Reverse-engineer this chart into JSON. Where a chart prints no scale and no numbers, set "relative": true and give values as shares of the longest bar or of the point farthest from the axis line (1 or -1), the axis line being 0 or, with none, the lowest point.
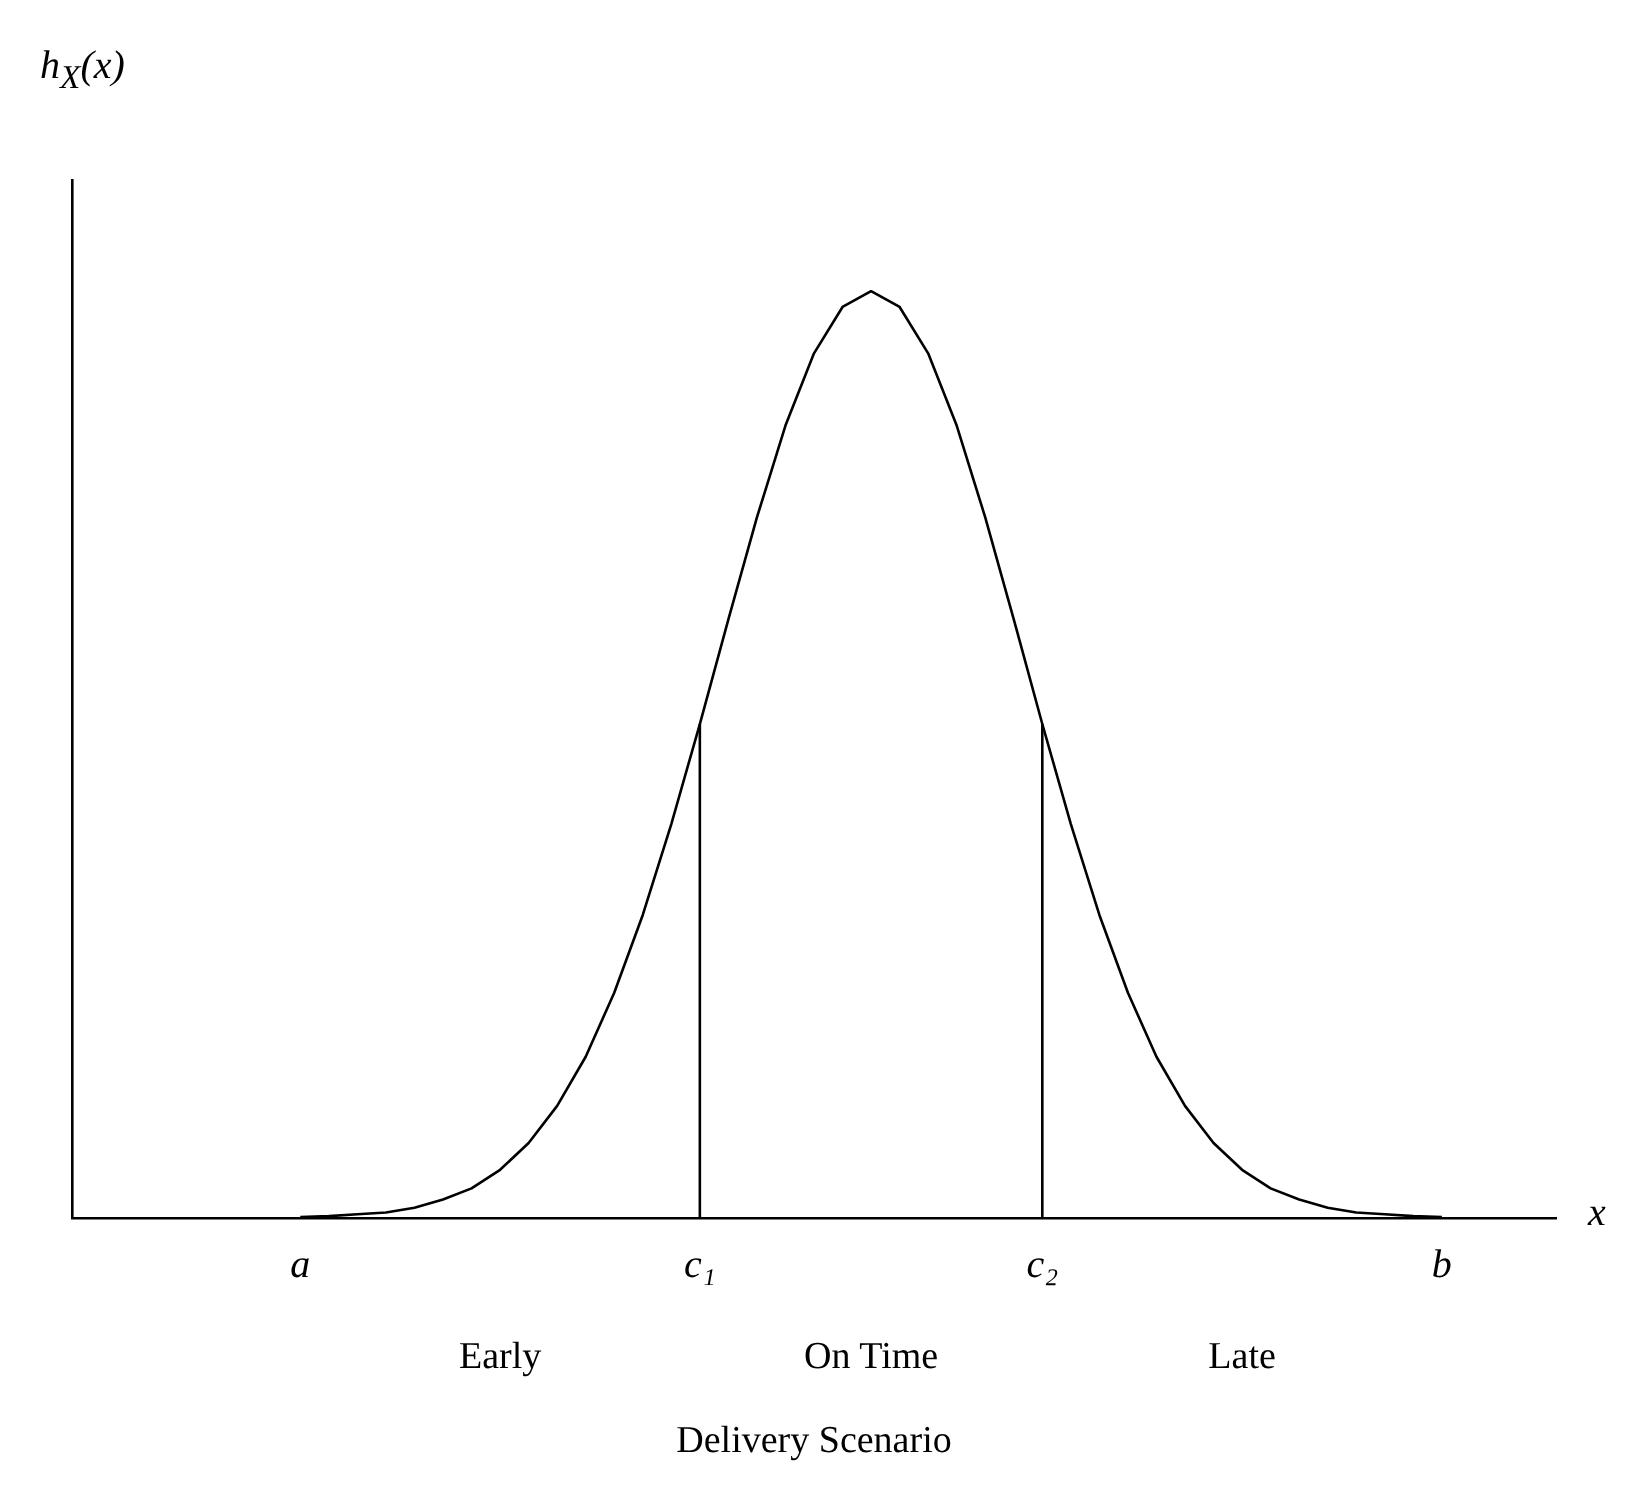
{
  "chart_data": {
    "type": "line",
    "relative": true,
    "ylabel": "h$_{X}$(x)",
    "xlabel": "Delivery Scenario",
    "annotations": [
      "x",
      "Early",
      "On Time",
      "Late"
    ],
    "categories": [
      null,
      null,
      null,
      null,
      null,
      null,
      null,
      null,
      "a",
      null,
      null,
      null,
      null,
      null,
      null,
      null,
      null,
      null,
      null,
      null,
      null,
      null,
      "c₁",
      null,
      null,
      null,
      null,
      null,
      null,
      null,
      null,
      null,
      null,
      null,
      "c₂",
      null,
      null,
      null,
      null,
      null,
      null,
      null,
      null,
      null,
      null,
      null,
      null,
      null,
      "b",
      null,
      null,
      null,
      null
    ],
    "series": [
      {
        "color": "#000000",
        "values": [
          null,
          null,
          null,
          null,
          null,
          null,
          null,
          null,
          0.001,
          0.002,
          0.004,
          0.006,
          0.011,
          0.02,
          0.032,
          0.052,
          0.081,
          0.121,
          0.174,
          0.243,
          0.327,
          0.425,
          0.533,
          0.646,
          0.756,
          0.855,
          0.933,
          0.983,
          1,
          0.983,
          0.933,
          0.855,
          0.756,
          0.646,
          0.533,
          0.425,
          0.327,
          0.243,
          0.174,
          0.121,
          0.081,
          0.052,
          0.032,
          0.02,
          0.011,
          0.006,
          0.004,
          0.002,
          0.001,
          null,
          null,
          null,
          null
        ]
      }
    ],
    "ref_lines": [
      {
        "axis": "x",
        "value": "c₁"
      },
      {
        "axis": "x",
        "value": "c₂"
      }
    ],
    "grid": false,
    "legend": false,
    "marker": "none",
    "line_style": "solid"
  }
}
